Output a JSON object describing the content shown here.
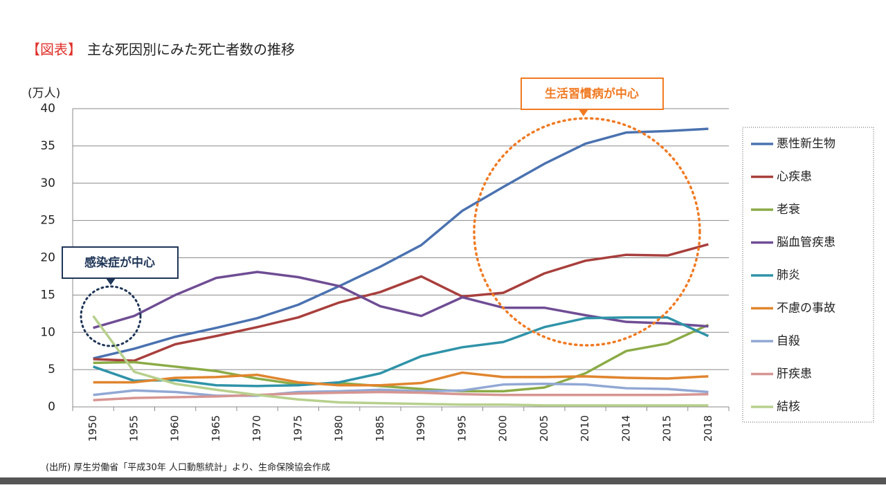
{
  "chart_data": {
    "type": "line",
    "title_prefix": "【図表】",
    "title": "主な死因別にみた死亡者数の推移",
    "y_label": "(万人)",
    "annotations": [
      "生活習慣病が中心",
      "感染症が中心"
    ],
    "source": "(出所) 厚生労働省「平成30年 人口動態統計」より、生命保険協会作成",
    "categories": [
      "1950",
      "1955",
      "1960",
      "1965",
      "1970",
      "1975",
      "1980",
      "1985",
      "1990",
      "1995",
      "2000",
      "2005",
      "2010",
      "2014",
      "2015",
      "2018"
    ],
    "ylim": [
      0,
      40
    ],
    "yticks": [
      0,
      5,
      10,
      15,
      20,
      25,
      30,
      35,
      40
    ],
    "grid": true,
    "legend": "right",
    "series": [
      {
        "name": "悪性新生物",
        "color": "#4a72b0",
        "values": [
          6.5,
          7.8,
          9.4,
          10.6,
          11.9,
          13.7,
          16.2,
          18.8,
          21.7,
          26.3,
          29.5,
          32.6,
          35.3,
          36.8,
          37.0,
          37.3
        ]
      },
      {
        "name": "心疾患",
        "color": "#a83f3c",
        "values": [
          6.4,
          6.2,
          8.4,
          9.5,
          10.7,
          12.0,
          14.0,
          15.4,
          17.5,
          14.8,
          15.3,
          17.9,
          19.6,
          20.4,
          20.3,
          21.8
        ]
      },
      {
        "name": "老衰",
        "color": "#8bab46",
        "values": [
          5.9,
          6.0,
          5.4,
          4.8,
          3.8,
          3.0,
          3.2,
          2.8,
          2.4,
          2.1,
          2.1,
          2.6,
          4.5,
          7.5,
          8.5,
          11.0
        ]
      },
      {
        "name": "脳血管疾患",
        "color": "#6f4d94",
        "values": [
          10.6,
          12.2,
          15.0,
          17.3,
          18.1,
          17.4,
          16.2,
          13.5,
          12.2,
          14.7,
          13.3,
          13.3,
          12.3,
          11.4,
          11.2,
          10.8
        ]
      },
      {
        "name": "肺炎",
        "color": "#2f93a8",
        "values": [
          5.4,
          3.5,
          3.6,
          2.9,
          2.8,
          2.9,
          3.3,
          4.5,
          6.8,
          8.0,
          8.7,
          10.7,
          11.9,
          12.0,
          12.0,
          9.5
        ]
      },
      {
        "name": "不慮の事故",
        "color": "#e0852e",
        "values": [
          3.3,
          3.3,
          3.9,
          4.0,
          4.3,
          3.3,
          2.9,
          2.9,
          3.2,
          4.6,
          4.0,
          4.0,
          4.1,
          3.9,
          3.8,
          4.1
        ]
      },
      {
        "name": "自殺",
        "color": "#91a8d4",
        "values": [
          1.6,
          2.2,
          2.0,
          1.5,
          1.5,
          2.0,
          2.1,
          2.3,
          2.1,
          2.2,
          3.0,
          3.1,
          3.0,
          2.5,
          2.4,
          2.0
        ]
      },
      {
        "name": "肝疾患",
        "color": "#d69592",
        "values": [
          0.9,
          1.2,
          1.3,
          1.4,
          1.6,
          1.8,
          1.9,
          2.0,
          1.9,
          1.7,
          1.6,
          1.6,
          1.6,
          1.6,
          1.6,
          1.7
        ]
      },
      {
        "name": "結核",
        "color": "#b7d08d",
        "values": [
          12.2,
          4.7,
          3.1,
          2.3,
          1.6,
          1.0,
          0.6,
          0.5,
          0.4,
          0.3,
          0.3,
          0.2,
          0.2,
          0.2,
          0.2,
          0.2
        ]
      }
    ]
  }
}
